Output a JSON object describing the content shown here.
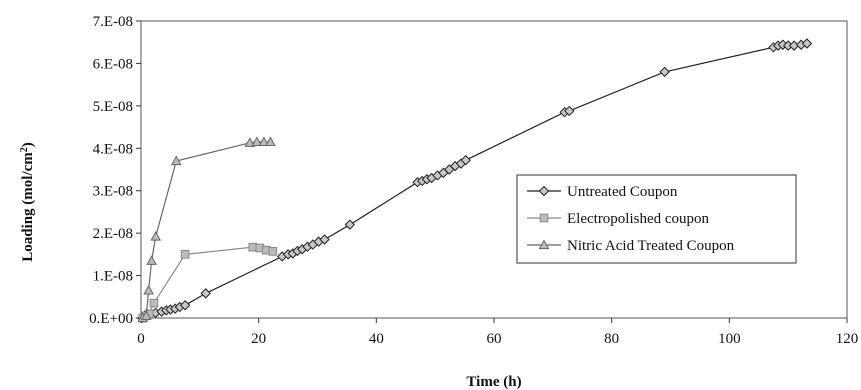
{
  "chart_data": {
    "type": "line",
    "title": "",
    "xlabel": "Time (h)",
    "ylabel": {
      "text": "Loading (mol/cm",
      "sup": "2",
      "tail": ")"
    },
    "xlim": [
      0,
      120
    ],
    "ylim": [
      0,
      7e-08
    ],
    "x_ticks": [
      0,
      20,
      40,
      60,
      80,
      100,
      120
    ],
    "x_tick_labels": [
      "0",
      "20",
      "40",
      "60",
      "80",
      "100",
      "120"
    ],
    "y_ticks": [
      0,
      1e-08,
      2e-08,
      3e-08,
      4e-08,
      5e-08,
      6e-08,
      7e-08
    ],
    "y_tick_labels": [
      "0.E+00",
      "1.E-08",
      "2.E-08",
      "3.E-08",
      "4.E-08",
      "5.E-08",
      "6.E-08",
      "7.E-08"
    ],
    "grid": false,
    "legend_position": "right",
    "series": [
      {
        "name": "Untreated Coupon",
        "marker": "diamond",
        "color": "#222222",
        "fill": "#c8c8c8",
        "points": [
          [
            0.2,
            0.0
          ],
          [
            0.6,
            5e-10
          ],
          [
            1.0,
            1e-09
          ],
          [
            2.5,
            1.2e-09
          ],
          [
            3.5,
            1.5e-09
          ],
          [
            4.3,
            1.8e-09
          ],
          [
            5.0,
            2e-09
          ],
          [
            5.8,
            2.2e-09
          ],
          [
            6.6,
            2.6e-09
          ],
          [
            7.5,
            3e-09
          ],
          [
            11.0,
            5.8e-09
          ],
          [
            24.0,
            1.45e-08
          ],
          [
            25.0,
            1.5e-08
          ],
          [
            25.8,
            1.52e-08
          ],
          [
            26.6,
            1.58e-08
          ],
          [
            27.4,
            1.62e-08
          ],
          [
            28.3,
            1.68e-08
          ],
          [
            29.2,
            1.73e-08
          ],
          [
            30.2,
            1.8e-08
          ],
          [
            31.2,
            1.85e-08
          ],
          [
            35.5,
            2.2e-08
          ],
          [
            47.0,
            3.2e-08
          ],
          [
            47.8,
            3.23e-08
          ],
          [
            48.6,
            3.27e-08
          ],
          [
            49.4,
            3.3e-08
          ],
          [
            50.4,
            3.36e-08
          ],
          [
            51.4,
            3.42e-08
          ],
          [
            52.4,
            3.5e-08
          ],
          [
            53.4,
            3.58e-08
          ],
          [
            54.4,
            3.64e-08
          ],
          [
            55.2,
            3.72e-08
          ],
          [
            72.0,
            4.85e-08
          ],
          [
            72.8,
            4.88e-08
          ],
          [
            89.0,
            5.8e-08
          ],
          [
            107.5,
            6.38e-08
          ],
          [
            108.3,
            6.42e-08
          ],
          [
            109.1,
            6.44e-08
          ],
          [
            110.0,
            6.42e-08
          ],
          [
            111.0,
            6.42e-08
          ],
          [
            112.2,
            6.44e-08
          ],
          [
            113.2,
            6.47e-08
          ]
        ]
      },
      {
        "name": "Electropolished coupon",
        "marker": "square",
        "color": "#888888",
        "fill": "#bcbcbc",
        "points": [
          [
            0.3,
            0.0
          ],
          [
            0.8,
            5e-10
          ],
          [
            1.4,
            1e-09
          ],
          [
            2.2,
            3.5e-09
          ],
          [
            7.5,
            1.5e-08
          ],
          [
            19.0,
            1.67e-08
          ],
          [
            20.2,
            1.65e-08
          ],
          [
            21.3,
            1.6e-08
          ],
          [
            22.4,
            1.57e-08
          ]
        ]
      },
      {
        "name": "Nitric Acid Treated Coupon",
        "marker": "triangle",
        "color": "#666666",
        "fill": "#bcbcbc",
        "points": [
          [
            0.3,
            0.0
          ],
          [
            0.9,
            5e-10
          ],
          [
            1.3,
            6.5e-09
          ],
          [
            1.8,
            1.35e-08
          ],
          [
            2.5,
            1.92e-08
          ],
          [
            6.0,
            3.7e-08
          ],
          [
            18.5,
            4.13e-08
          ],
          [
            19.7,
            4.15e-08
          ],
          [
            20.9,
            4.15e-08
          ],
          [
            22.0,
            4.15e-08
          ]
        ]
      }
    ]
  }
}
